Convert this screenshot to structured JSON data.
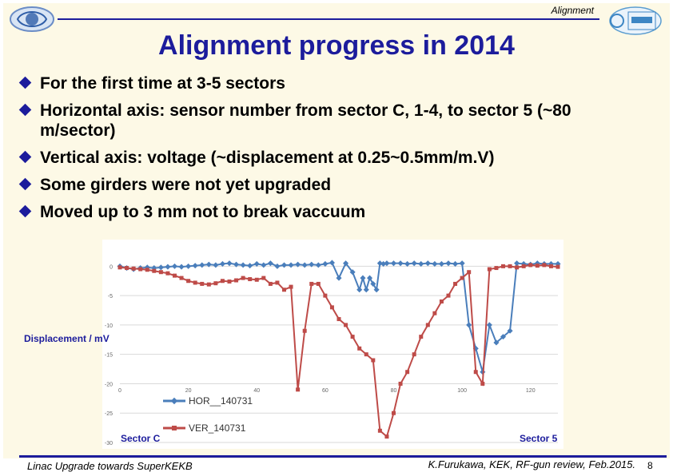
{
  "header": {
    "section_label": "Alignment",
    "title": "Alignment progress in 2014"
  },
  "logos": {
    "left": "kek-logo",
    "right": "superkekb-logo"
  },
  "bullets": [
    "For the first time at 3-5 sectors",
    "Horizontal axis: sensor number from sector C, 1-4, to sector 5 (~80 m/sector)",
    "Vertical axis: voltage (~displacement at 0.25~0.5mm/m.V)",
    "Some girders were not yet upgraded",
    "Moved up to 3 mm not to break vaccuum"
  ],
  "chart_data": {
    "type": "line",
    "title": "",
    "xlabel": "",
    "ylabel": "Displacement / mV",
    "xlim": [
      0,
      128
    ],
    "ylim": [
      -30,
      1
    ],
    "x_ticks": [
      0,
      20,
      40,
      60,
      80,
      100,
      120
    ],
    "y_ticks": [
      0,
      -5,
      -10,
      -15,
      -20,
      -25,
      -30
    ],
    "grid": "horizontal",
    "legend_position": "bottom-left",
    "annotations": [
      "Sector C",
      "Sector 5"
    ],
    "colors": {
      "HOR__140731": "#4a7ebb",
      "VER_140731": "#be4b48"
    },
    "series": [
      {
        "name": "HOR__140731",
        "x": [
          0,
          2,
          4,
          6,
          8,
          10,
          12,
          14,
          16,
          18,
          20,
          22,
          24,
          26,
          28,
          30,
          32,
          34,
          36,
          38,
          40,
          42,
          44,
          46,
          48,
          50,
          52,
          54,
          56,
          58,
          60,
          62,
          64,
          66,
          68,
          70,
          71,
          72,
          73,
          74,
          75,
          76,
          77,
          78,
          80,
          82,
          84,
          86,
          88,
          90,
          92,
          94,
          96,
          98,
          100,
          102,
          104,
          106,
          108,
          110,
          112,
          114,
          116,
          118,
          120,
          122,
          124,
          126,
          128
        ],
        "y": [
          0,
          -0.3,
          -0.5,
          -0.3,
          -0.2,
          -0.3,
          -0.2,
          -0.1,
          0,
          -0.1,
          0,
          0.1,
          0.2,
          0.3,
          0.2,
          0.4,
          0.5,
          0.3,
          0.2,
          0.1,
          0.4,
          0.2,
          0.5,
          0,
          0.2,
          0.2,
          0.3,
          0.2,
          0.3,
          0.2,
          0.4,
          0.6,
          -2,
          0.5,
          -1,
          -4,
          -2,
          -4,
          -2,
          -3,
          -4,
          0.5,
          0.4,
          0.5,
          0.5,
          0.5,
          0.4,
          0.5,
          0.4,
          0.5,
          0.4,
          0.4,
          0.5,
          0.4,
          0.5,
          -10,
          -14,
          -18,
          -10,
          -13,
          -12,
          -11,
          0.5,
          0.4,
          0.3,
          0.5,
          0.4,
          0.4,
          0.4
        ]
      },
      {
        "name": "VER_140731",
        "x": [
          0,
          2,
          4,
          6,
          8,
          10,
          12,
          14,
          16,
          18,
          20,
          22,
          24,
          26,
          28,
          30,
          32,
          34,
          36,
          38,
          40,
          42,
          44,
          46,
          48,
          50,
          52,
          54,
          56,
          58,
          60,
          62,
          64,
          66,
          68,
          70,
          72,
          74,
          76,
          78,
          80,
          82,
          84,
          86,
          88,
          90,
          92,
          94,
          96,
          98,
          100,
          102,
          104,
          106,
          108,
          110,
          112,
          114,
          116,
          118,
          120,
          122,
          124,
          126,
          128
        ],
        "y": [
          -0.2,
          -0.3,
          -0.4,
          -0.5,
          -0.6,
          -0.8,
          -1,
          -1.2,
          -1.6,
          -2,
          -2.5,
          -2.8,
          -3,
          -3.1,
          -2.9,
          -2.5,
          -2.6,
          -2.4,
          -2,
          -2.2,
          -2.3,
          -2,
          -3,
          -2.8,
          -4,
          -3.5,
          -21,
          -11,
          -3,
          -3,
          -5,
          -7,
          -9,
          -10,
          -12,
          -14,
          -15,
          -16,
          -28,
          -29,
          -25,
          -20,
          -18,
          -15,
          -12,
          -10,
          -8,
          -6,
          -5,
          -3,
          -2,
          -1,
          -18,
          -20,
          -0.5,
          -0.3,
          0,
          0,
          -0.2,
          0,
          0.2,
          0.1,
          0.2,
          0,
          -0.1
        ]
      }
    ]
  },
  "labels": {
    "ylabel": "Displacement / mV",
    "sector_c": "Sector C",
    "sector_5": "Sector 5"
  },
  "footer": {
    "left": "Linac Upgrade towards SuperKEKB",
    "right": "K.Furukawa, KEK, RF-gun review, Feb.2015.",
    "page": "8"
  }
}
